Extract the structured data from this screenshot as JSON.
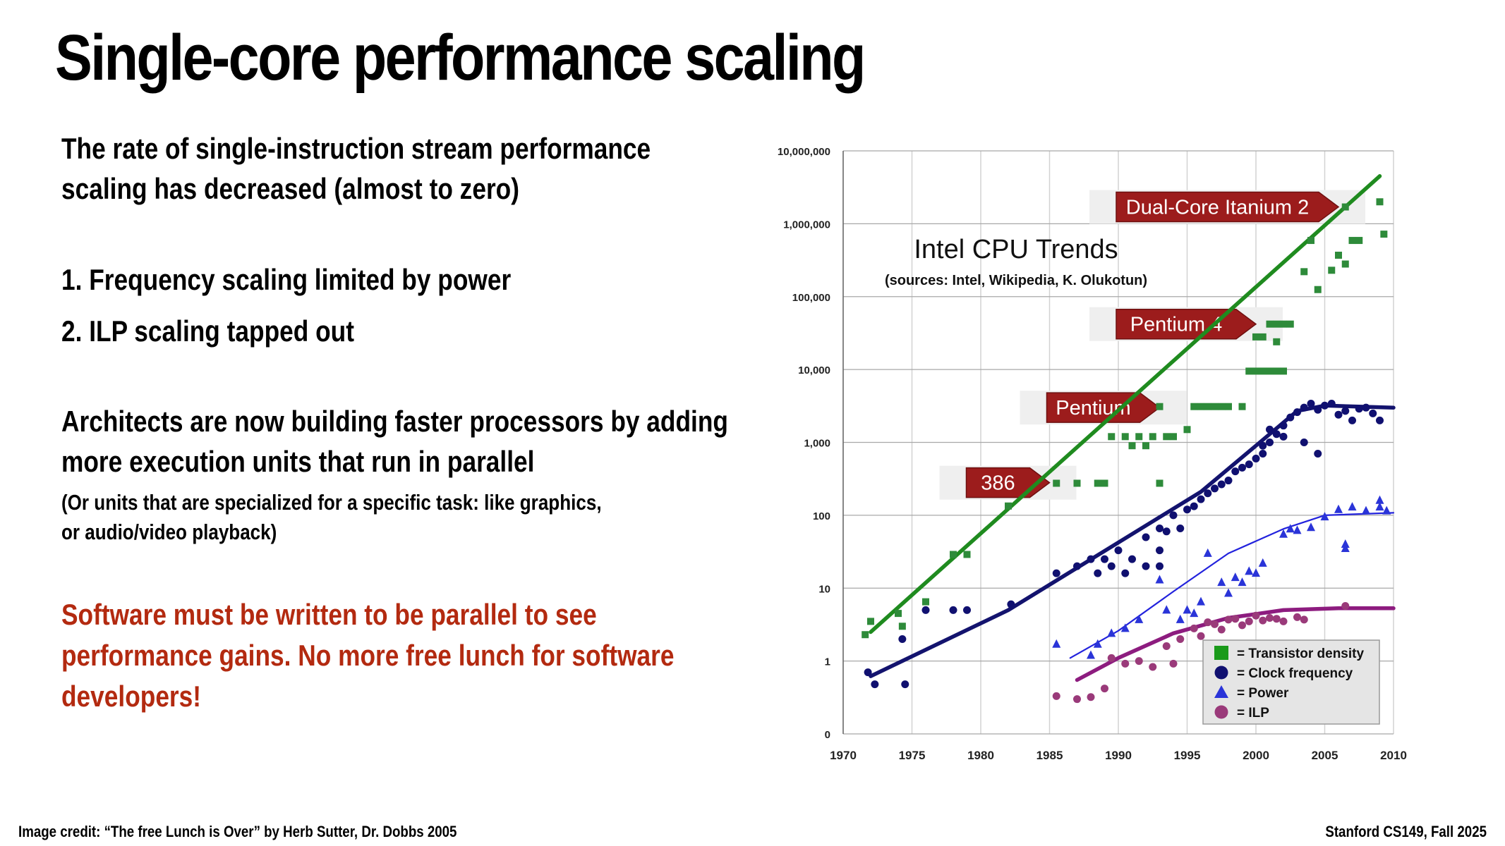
{
  "slide": {
    "title": "Single-core performance scaling",
    "para1": [
      "The rate of single-instruction stream performance",
      "scaling has decreased (almost to zero)"
    ],
    "bullet1": "1. Frequency scaling limited by power",
    "bullet2": "2. ILP scaling tapped out",
    "para2": [
      "Architects are now building faster processors by adding",
      "more execution units that run in parallel"
    ],
    "para3": [
      "(Or units that are specialized for a specific task: like graphics,",
      "or audio/video playback)"
    ],
    "para4": [
      "Software must be written to be parallel to see",
      "performance gains. No more free lunch for software",
      "developers!"
    ],
    "footer_left": "Image credit: “The free Lunch is Over” by Herb Sutter, Dr. Dobbs 2005",
    "footer_right": "Stanford CS149, Fall 2025",
    "accent_color": "#b32a10"
  },
  "chart_data": {
    "type": "scatter",
    "title": "Intel CPU Trends",
    "subtitle": "(sources: Intel, Wikipedia, K. Olukotun)",
    "xlim": [
      1970,
      2010
    ],
    "x_ticks": [
      1970,
      1975,
      1980,
      1985,
      1990,
      1995,
      2000,
      2005,
      2010
    ],
    "y_scale": "log",
    "y_tick_values": [
      0.1,
      1,
      10,
      100,
      1000,
      10000,
      100000,
      1000000,
      10000000
    ],
    "y_tick_labels": [
      "0",
      "1",
      "10",
      "100",
      "1,000",
      "10,000",
      "100,000",
      "1,000,000",
      "10,000,000"
    ],
    "grid": true,
    "legend_position": "bottom-right",
    "annotations": [
      {
        "text": "Dual-Core Itanium 2",
        "x": 2006,
        "y": 1700000
      },
      {
        "text": "Pentium 4",
        "x": 2000,
        "y": 42000
      },
      {
        "text": "Pentium",
        "x": 1993,
        "y": 3000
      },
      {
        "text": "386",
        "x": 1985,
        "y": 280
      }
    ],
    "series": [
      {
        "name": "= Transistor density",
        "marker": "square",
        "color": "#2e8b3a",
        "line_color": "#1f8b1f",
        "trend": [
          [
            1972,
            2.5
          ],
          [
            2009,
            4500000
          ]
        ],
        "points": [
          [
            1971.6,
            2.3
          ],
          [
            1972,
            3.5
          ],
          [
            1974,
            4.5
          ],
          [
            1974.3,
            3
          ],
          [
            1976,
            6.5
          ],
          [
            1978,
            29
          ],
          [
            1979,
            29
          ],
          [
            1982,
            134
          ],
          [
            1985.5,
            275
          ],
          [
            1987,
            275
          ],
          [
            1988.5,
            275
          ],
          [
            1989,
            275
          ],
          [
            1989.5,
            1200
          ],
          [
            1990.5,
            1200
          ],
          [
            1991,
            900
          ],
          [
            1991.5,
            1200
          ],
          [
            1992,
            900
          ],
          [
            1992.5,
            1200
          ],
          [
            1993,
            3100
          ],
          [
            1993.5,
            1200
          ],
          [
            1993,
            275
          ],
          [
            1994,
            1200
          ],
          [
            1995,
            1500
          ],
          [
            1995.5,
            3100
          ],
          [
            1996,
            3100
          ],
          [
            1996.5,
            3100
          ],
          [
            1997,
            3100
          ],
          [
            1997.5,
            3100
          ],
          [
            1998,
            3100
          ],
          [
            1999,
            3100
          ],
          [
            2000,
            28000
          ],
          [
            2000.5,
            28000
          ],
          [
            2001,
            42000
          ],
          [
            2001.5,
            42000
          ],
          [
            2002,
            42000
          ],
          [
            2002.5,
            42000
          ],
          [
            1999.5,
            9500
          ],
          [
            2000,
            9500
          ],
          [
            2000.5,
            9500
          ],
          [
            2001,
            9500
          ],
          [
            2001.5,
            9500
          ],
          [
            2002,
            9500
          ],
          [
            2001.5,
            24000
          ],
          [
            2003.5,
            220000
          ],
          [
            2004,
            590000
          ],
          [
            2004.5,
            125000
          ],
          [
            2005.5,
            230000
          ],
          [
            2006,
            370000
          ],
          [
            2006.5,
            1700000
          ],
          [
            2006.5,
            280000
          ],
          [
            2007,
            590000
          ],
          [
            2007.5,
            590000
          ],
          [
            2009,
            2000000
          ],
          [
            2009.3,
            720000
          ]
        ]
      },
      {
        "name": "= Clock frequency",
        "marker": "circle",
        "color": "#101070",
        "line_color": "#13136e",
        "trend": [
          [
            1972,
            0.62
          ],
          [
            1982,
            5
          ],
          [
            1996,
            210
          ],
          [
            2000,
            900
          ],
          [
            2003,
            2700
          ],
          [
            2005,
            3200
          ],
          [
            2010,
            3000
          ]
        ],
        "points": [
          [
            1971.8,
            0.7
          ],
          [
            1972.3,
            0.48
          ],
          [
            1974.3,
            2
          ],
          [
            1974.5,
            0.48
          ],
          [
            1976,
            5
          ],
          [
            1978,
            5
          ],
          [
            1979,
            5
          ],
          [
            1982.2,
            6
          ],
          [
            1985.5,
            16
          ],
          [
            1987,
            20
          ],
          [
            1988,
            25
          ],
          [
            1988.5,
            16
          ],
          [
            1989,
            25
          ],
          [
            1989.5,
            20
          ],
          [
            1990,
            33
          ],
          [
            1990.5,
            16
          ],
          [
            1991,
            25
          ],
          [
            1992,
            20
          ],
          [
            1992,
            50
          ],
          [
            1993,
            33
          ],
          [
            1993,
            66
          ],
          [
            1993,
            20
          ],
          [
            1993.5,
            60
          ],
          [
            1994,
            100
          ],
          [
            1994.5,
            66
          ],
          [
            1995,
            120
          ],
          [
            1995.5,
            133
          ],
          [
            1996,
            166
          ],
          [
            1996.5,
            200
          ],
          [
            1997,
            233
          ],
          [
            1997.5,
            266
          ],
          [
            1998,
            300
          ],
          [
            1998.5,
            400
          ],
          [
            1999,
            450
          ],
          [
            1999.5,
            500
          ],
          [
            2000,
            600
          ],
          [
            2000.5,
            900
          ],
          [
            2001,
            1000
          ],
          [
            2001.5,
            1300
          ],
          [
            2002,
            1700
          ],
          [
            2002.5,
            2200
          ],
          [
            2003,
            2600
          ],
          [
            2003.5,
            3000
          ],
          [
            2004,
            3400
          ],
          [
            2004.5,
            2800
          ],
          [
            2005,
            3200
          ],
          [
            2005.5,
            3400
          ],
          [
            2006,
            2400
          ],
          [
            2006.5,
            2700
          ],
          [
            2007,
            2000
          ],
          [
            2007.5,
            2900
          ],
          [
            2008,
            3000
          ],
          [
            2008.5,
            2500
          ],
          [
            2009,
            2000
          ],
          [
            2003.5,
            1000
          ],
          [
            2004.5,
            700
          ],
          [
            2002,
            1200
          ],
          [
            2000.5,
            700
          ],
          [
            2001,
            1500
          ]
        ]
      },
      {
        "name": "= Power",
        "marker": "triangle",
        "color": "#2a34d8",
        "line_color": "#2222dd",
        "trend": [
          [
            1986.5,
            1.1
          ],
          [
            1990,
            2.6
          ],
          [
            1994,
            9
          ],
          [
            1998,
            30
          ],
          [
            2002,
            65
          ],
          [
            2005,
            100
          ],
          [
            2010,
            108
          ]
        ],
        "points": [
          [
            1985.5,
            1.7
          ],
          [
            1988,
            1.2
          ],
          [
            1988.5,
            1.7
          ],
          [
            1989.5,
            2.4
          ],
          [
            1990.5,
            2.8
          ],
          [
            1991.5,
            3.7
          ],
          [
            1993,
            13
          ],
          [
            1993.5,
            5
          ],
          [
            1994.5,
            3.7
          ],
          [
            1995,
            5
          ],
          [
            1995.5,
            4.5
          ],
          [
            1996,
            6.5
          ],
          [
            1996.5,
            30
          ],
          [
            1997.5,
            12
          ],
          [
            1998,
            8.5
          ],
          [
            1998.5,
            14
          ],
          [
            1999,
            12
          ],
          [
            1999.5,
            17
          ],
          [
            2000,
            16
          ],
          [
            2000.5,
            22
          ],
          [
            2002,
            55
          ],
          [
            2002.5,
            65
          ],
          [
            2003,
            62
          ],
          [
            2004,
            68
          ],
          [
            2005,
            95
          ],
          [
            2006,
            120
          ],
          [
            2006.5,
            40
          ],
          [
            2006.5,
            35
          ],
          [
            2007,
            130
          ],
          [
            2008,
            115
          ],
          [
            2009,
            160
          ],
          [
            2009,
            130
          ],
          [
            2009.5,
            115
          ]
        ]
      },
      {
        "name": "= ILP",
        "marker": "circle",
        "color": "#9a3a7a",
        "line_color": "#8d1c7f",
        "trend": [
          [
            1987,
            0.55
          ],
          [
            1990,
            1.1
          ],
          [
            1994,
            2.4
          ],
          [
            1998,
            3.9
          ],
          [
            2002,
            5
          ],
          [
            2006,
            5.3
          ],
          [
            2010,
            5.3
          ]
        ],
        "points": [
          [
            1985.5,
            0.33
          ],
          [
            1987,
            0.3
          ],
          [
            1988,
            0.32
          ],
          [
            1989,
            0.42
          ],
          [
            1989.5,
            1.1
          ],
          [
            1990.5,
            0.92
          ],
          [
            1991.5,
            1
          ],
          [
            1992.5,
            0.83
          ],
          [
            1993.5,
            1.6
          ],
          [
            1994,
            0.92
          ],
          [
            1994.5,
            2
          ],
          [
            1995.5,
            2.8
          ],
          [
            1996,
            2.2
          ],
          [
            1996.5,
            3.4
          ],
          [
            1997,
            3.2
          ],
          [
            1997.5,
            2.7
          ],
          [
            1998,
            3.7
          ],
          [
            1998.5,
            3.8
          ],
          [
            1999,
            3.1
          ],
          [
            1999.5,
            3.5
          ],
          [
            2000,
            4.2
          ],
          [
            2000.5,
            3.6
          ],
          [
            2001,
            3.9
          ],
          [
            2001.5,
            3.8
          ],
          [
            2002,
            3.5
          ],
          [
            2003,
            4
          ],
          [
            2003.5,
            3.7
          ],
          [
            2006.5,
            5.7
          ]
        ]
      }
    ]
  }
}
